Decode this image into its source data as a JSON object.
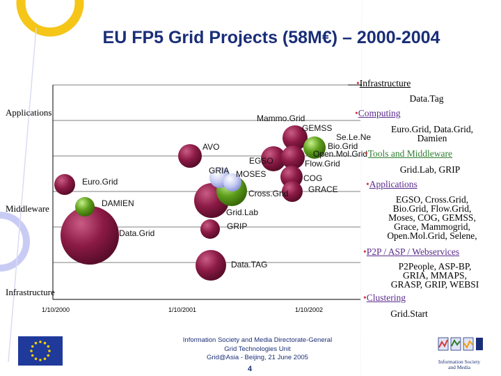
{
  "title": "EU FP5 Grid Projects (58M€) – 2000-2004",
  "colors": {
    "title": "#1a2e78",
    "bubble_dark": "#8b1a45",
    "bubble_green": "#5e9e1c",
    "bubble_lightblue": "#c6ccf2",
    "bullet": "#d43a3a",
    "legend_green": "#2e7d2e",
    "legend_purple": "#5a2a8a"
  },
  "axis": {
    "applications": "Applications",
    "middleware": "Middleware",
    "infrastructure": "Infrastructure"
  },
  "chart_data": {
    "type": "scatter",
    "x": {
      "label": "",
      "ticks": [
        "1/10/2000",
        "1/10/2001",
        "1/10/2002"
      ]
    },
    "y": {
      "label": "",
      "categories": [
        "Applications",
        "Middleware",
        "Infrastructure"
      ]
    },
    "bubbles": [
      {
        "label": "Mammo.Grid",
        "color": "bubble_dark"
      },
      {
        "label": "GEMSS",
        "color": "bubble_dark"
      },
      {
        "label": "Se.Le.Ne",
        "color": "bubble_dark"
      },
      {
        "label": "Bio.Grid",
        "color": "bubble_green"
      },
      {
        "label": "Open.Mol.Grid",
        "color": "bubble_dark"
      },
      {
        "label": "AVO",
        "color": "bubble_dark"
      },
      {
        "label": "EGSO",
        "color": "bubble_dark"
      },
      {
        "label": "Flow.Grid",
        "color": "bubble_dark"
      },
      {
        "label": "GRIA",
        "color": "bubble_lightblue"
      },
      {
        "label": "MOSES",
        "color": "bubble_lightblue"
      },
      {
        "label": "COG",
        "color": "bubble_dark"
      },
      {
        "label": "GRACE",
        "color": "bubble_dark"
      },
      {
        "label": "Euro.Grid",
        "color": "bubble_dark"
      },
      {
        "label": "Cross.Grid",
        "color": "bubble_green"
      },
      {
        "label": "DAMIEN",
        "color": "bubble_green"
      },
      {
        "label": "Grid.Lab",
        "color": "bubble_dark"
      },
      {
        "label": "GRIP",
        "color": "bubble_dark"
      },
      {
        "label": "Data.Grid",
        "color": "bubble_dark"
      },
      {
        "label": "Data.TAG",
        "color": "bubble_dark"
      }
    ]
  },
  "legend": [
    {
      "category": "Infrastructure",
      "items": [
        "Data.Tag"
      ]
    },
    {
      "category": "Computing",
      "items": [
        "Euro.Grid, Data.Grid,",
        "Damien"
      ]
    },
    {
      "category": "Tools and Middleware",
      "items": [
        "Grid.Lab, GRIP"
      ]
    },
    {
      "category": "Applications",
      "items": [
        "EGSO, Cross.Grid,",
        "Bio.Grid, Flow.Grid,",
        "Moses, COG, GEMSS,",
        "Grace, Mammogrid,",
        "Open.Mol.Grid, Selene,"
      ]
    },
    {
      "category": "P2P / ASP / Webservices",
      "items": [
        "P2People, ASP-BP,",
        "GRIA, MMAPS,",
        "GRASP, GRIP, WEBSI"
      ]
    },
    {
      "category": "Clustering",
      "items": [
        "Grid.Start"
      ]
    }
  ],
  "footer": {
    "line1": "Information Society and Media Directorate-General",
    "line2": "Grid Technologies Unit",
    "line3": "Grid@Asia - Beijing, 21 June 2005",
    "page": "4"
  },
  "logos": {
    "eu_flag": "eu-flag-logo",
    "isml": "information-society-media-logo",
    "isml_text1": "Information Society",
    "isml_text2": "and Media"
  }
}
